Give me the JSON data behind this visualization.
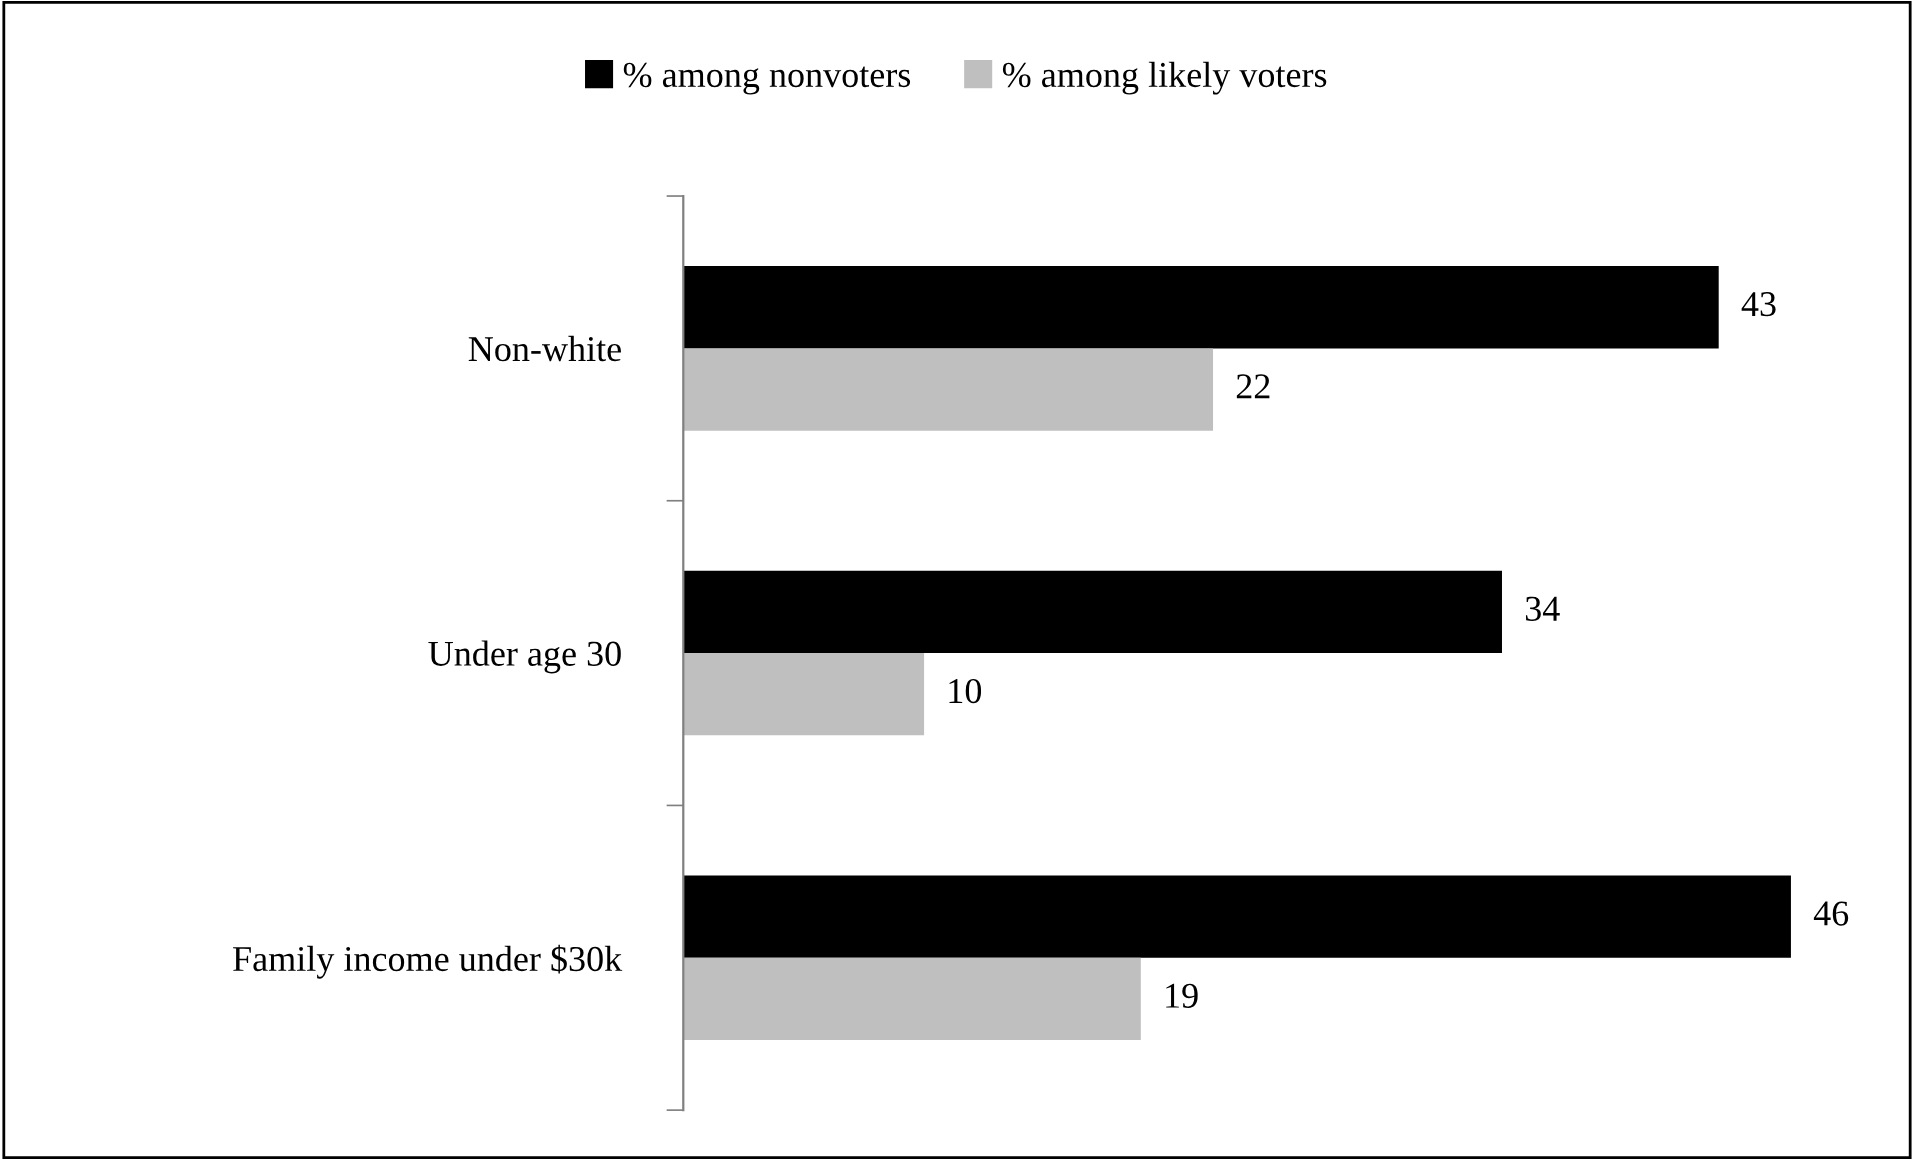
{
  "chart_data": {
    "type": "bar",
    "orientation": "horizontal",
    "categories": [
      "Non-white",
      "Under age 30",
      "Family income under $30k"
    ],
    "series": [
      {
        "name": "% among nonvoters",
        "color": "#000000",
        "values": [
          43,
          34,
          46
        ]
      },
      {
        "name": "% among likely voters",
        "color": "#bfbfbf",
        "values": [
          22,
          10,
          19
        ]
      }
    ],
    "tick_labels": "y",
    "data_labels": true,
    "legend": "top",
    "grid": false
  }
}
